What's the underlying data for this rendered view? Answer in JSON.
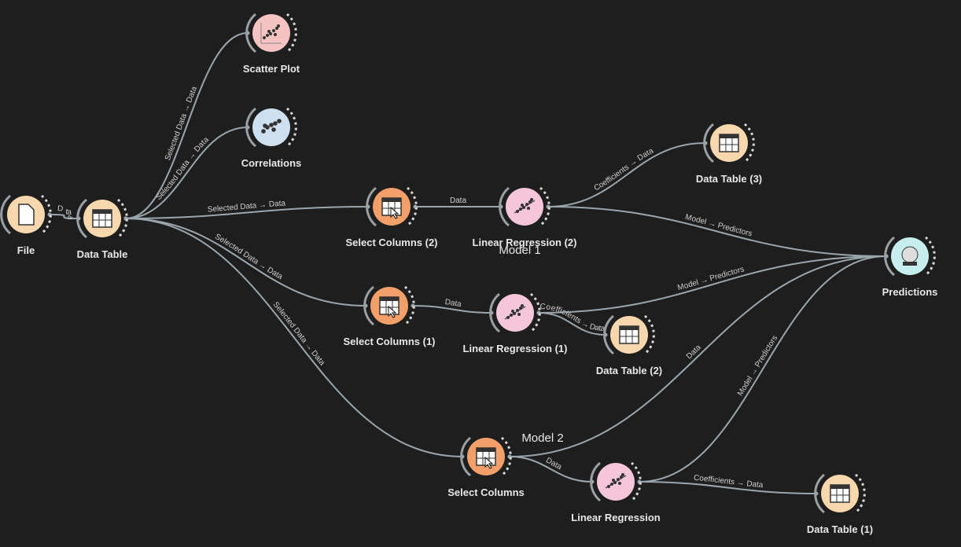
{
  "nodes": [
    {
      "label": "File"
    },
    {
      "label": "Data Table"
    },
    {
      "label": "Scatter Plot"
    },
    {
      "label": "Correlations"
    },
    {
      "label": "Select Columns (2)"
    },
    {
      "label": "Linear Regression (2)"
    },
    {
      "label": "Data Table (3)"
    },
    {
      "label": "Predictions"
    },
    {
      "label": "Select Columns (1)"
    },
    {
      "label": "Linear Regression (1)"
    },
    {
      "label": "Data Table (2)"
    },
    {
      "label": "Select Columns"
    },
    {
      "label": "Linear Regression"
    },
    {
      "label": "Data Table (1)"
    }
  ],
  "links": [
    {
      "label": "Data"
    },
    {
      "label": "Selected Data → Data"
    },
    {
      "label": "Selected Data → Data"
    },
    {
      "label": "Selected Data → Data"
    },
    {
      "label": "Selected Data → Data"
    },
    {
      "label": "Selected Data → Data"
    },
    {
      "label": "Data"
    },
    {
      "label": "Coefficients → Data"
    },
    {
      "label": "Model → Predictors"
    },
    {
      "label": "Data"
    },
    {
      "label": "Model → Predictors"
    },
    {
      "label": "Coefficients → Data"
    },
    {
      "label": "Data"
    },
    {
      "label": "Data"
    },
    {
      "label": "Model → Predictors"
    },
    {
      "label": "Coefficients → Data"
    }
  ],
  "annotations": [
    {
      "text": "Model 1"
    },
    {
      "text": "Model 2"
    }
  ]
}
